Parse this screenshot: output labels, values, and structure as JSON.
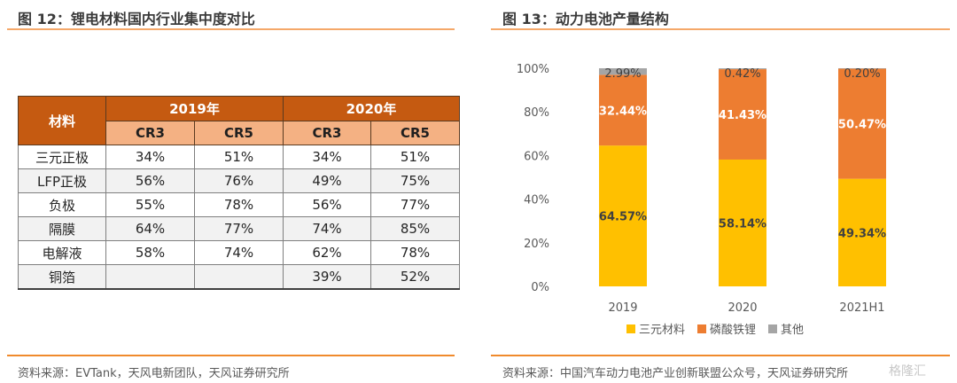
{
  "left_panel": {
    "title": "图 12：锂电材料国内行业集中度对比",
    "source": "资料来源：EVTank，天风电新团队，天风证券研究所",
    "table": {
      "header_material": "材料",
      "years": [
        "2019年",
        "2020年"
      ],
      "subheaders": [
        "CR3",
        "CR5",
        "CR3",
        "CR5"
      ],
      "rows": [
        {
          "material": "三元正极",
          "values": [
            "34%",
            "51%",
            "34%",
            "51%"
          ]
        },
        {
          "material": "LFP正极",
          "values": [
            "56%",
            "76%",
            "49%",
            "75%"
          ]
        },
        {
          "material": "负极",
          "values": [
            "55%",
            "78%",
            "56%",
            "77%"
          ]
        },
        {
          "material": "隔膜",
          "values": [
            "64%",
            "77%",
            "74%",
            "85%"
          ]
        },
        {
          "material": "电解液",
          "values": [
            "58%",
            "74%",
            "62%",
            "78%"
          ]
        },
        {
          "material": "铜箔",
          "values": [
            "",
            "",
            "39%",
            "52%"
          ]
        }
      ]
    }
  },
  "right_panel": {
    "title": "图 13：动力电池产量结构",
    "source": "资料来源：中国汽车动力电池产业创新联盟公众号，天风证券研究所",
    "watermark": "格隆汇"
  },
  "chart_data": {
    "type": "bar",
    "stacked": true,
    "title": "图 13：动力电池产量结构",
    "xlabel": "",
    "ylabel": "",
    "categories": [
      "2019",
      "2020",
      "2021H1"
    ],
    "ylim": [
      0,
      100
    ],
    "yticks": [
      "0%",
      "20%",
      "40%",
      "60%",
      "80%",
      "100%"
    ],
    "grid": false,
    "legend_position": "bottom",
    "series": [
      {
        "name": "三元材料",
        "color": "#ffc000",
        "values": [
          64.57,
          58.14,
          49.34
        ],
        "labels": [
          "64.57%",
          "58.14%",
          "49.34%"
        ],
        "label_color": "#404040"
      },
      {
        "name": "磷酸铁锂",
        "color": "#ed7d31",
        "values": [
          32.44,
          41.43,
          50.47
        ],
        "labels": [
          "32.44%",
          "41.43%",
          "50.47%"
        ],
        "label_color": "#ffffff"
      },
      {
        "name": "其他",
        "color": "#a5a5a5",
        "values": [
          2.99,
          0.42,
          0.2
        ],
        "labels": [
          "2.99%",
          "0.42%",
          "0.20%"
        ],
        "label_color": "#404040"
      }
    ]
  }
}
